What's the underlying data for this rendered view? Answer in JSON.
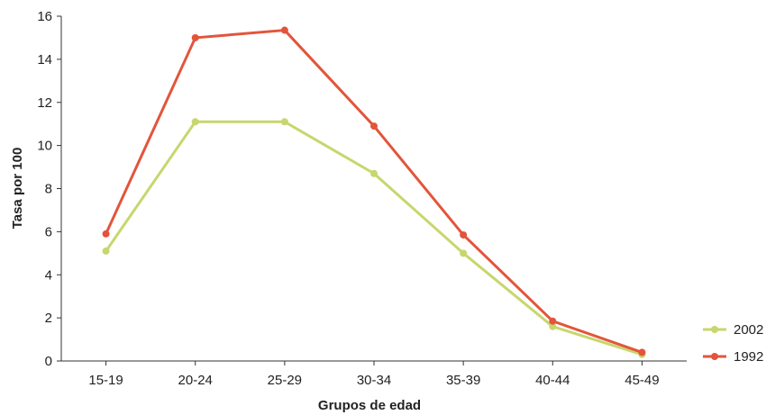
{
  "chart_data": {
    "type": "line",
    "title": "",
    "xlabel": "Grupos de edad",
    "ylabel": "Tasa por 100",
    "categories": [
      "15-19",
      "20-24",
      "25-29",
      "30-34",
      "35-39",
      "40-44",
      "45-49"
    ],
    "ylim": [
      0,
      16
    ],
    "yticks": [
      0,
      2,
      4,
      6,
      8,
      10,
      12,
      14,
      16
    ],
    "yticklabels": [
      "0",
      "2",
      "4",
      "6",
      "8",
      "10",
      "12",
      "14",
      "16"
    ],
    "grid": false,
    "legend_position": "bottom-right",
    "series": [
      {
        "name": "2002",
        "color": "#c8d66e",
        "values": [
          5.1,
          11.1,
          11.1,
          8.7,
          5.0,
          1.6,
          0.3
        ]
      },
      {
        "name": "1992",
        "color": "#e2553b",
        "values": [
          5.9,
          15.0,
          15.35,
          10.9,
          5.85,
          1.85,
          0.4
        ]
      }
    ]
  }
}
